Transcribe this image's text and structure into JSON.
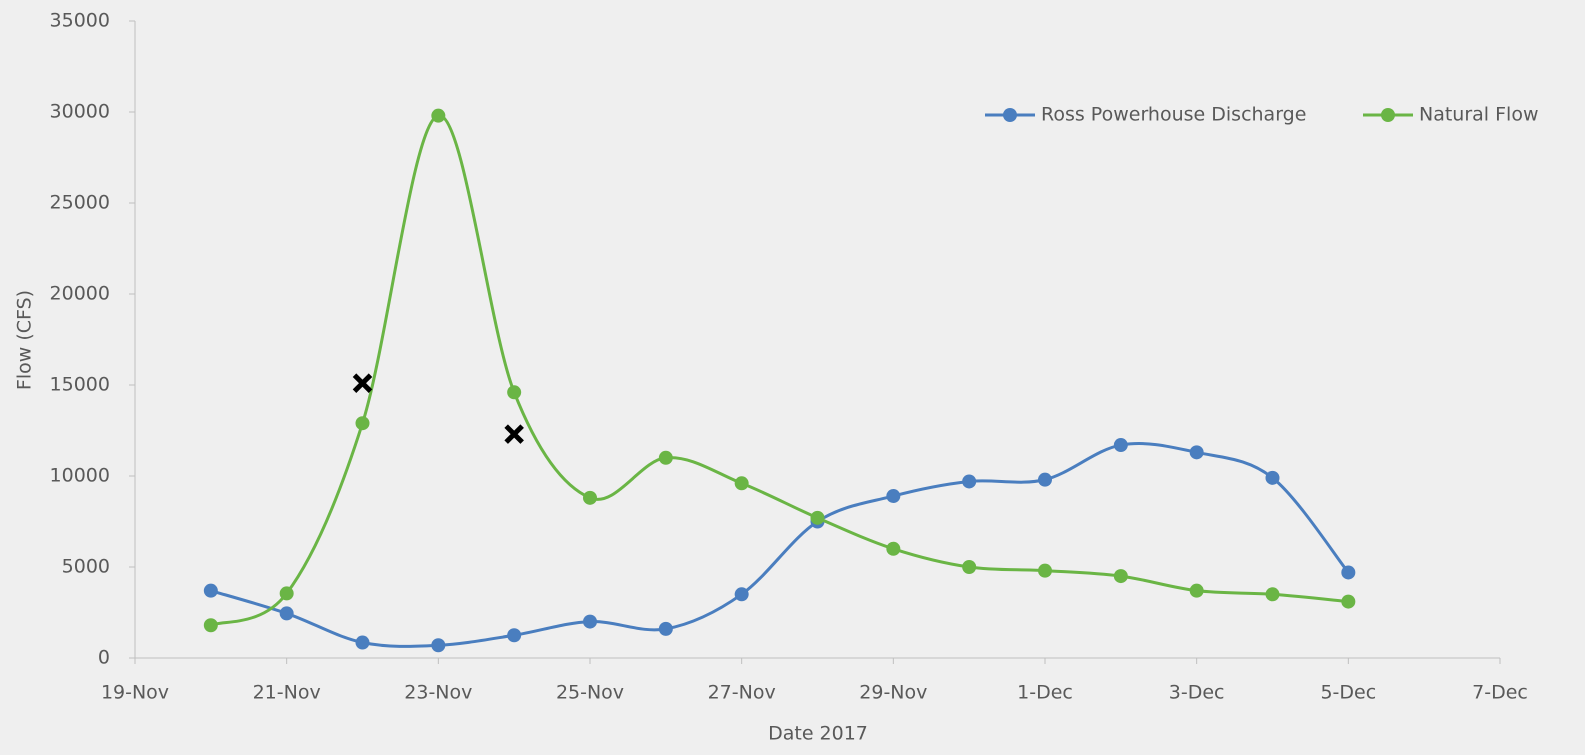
{
  "chart_data": {
    "type": "line",
    "x_label": "Date 2017",
    "y_label": "Flow (CFS)",
    "x": [
      "20-Nov",
      "21-Nov",
      "22-Nov",
      "23-Nov",
      "24-Nov",
      "25-Nov",
      "26-Nov",
      "27-Nov",
      "28-Nov",
      "29-Nov",
      "30-Nov",
      "1-Dec",
      "2-Dec",
      "3-Dec",
      "4-Dec",
      "5-Dec"
    ],
    "series": [
      {
        "name": "Ross Powerhouse Discharge",
        "color": "#4a7ebf",
        "values": [
          3700,
          2450,
          850,
          700,
          1250,
          2000,
          1600,
          3500,
          7500,
          8900,
          9700,
          9800,
          11700,
          11300,
          9900,
          4700
        ]
      },
      {
        "name": "Natural Flow",
        "color": "#6ab545",
        "values": [
          1800,
          3550,
          12900,
          29800,
          14600,
          8800,
          11000,
          9600,
          7700,
          6000,
          5000,
          4800,
          4500,
          3700,
          3500,
          3100
        ]
      }
    ],
    "markers": {
      "color": "#000000",
      "x": [
        "22-Nov",
        "24-Nov"
      ],
      "y": [
        15100,
        12300
      ]
    },
    "xlim": [
      "19-Nov",
      "7-Dec"
    ],
    "xticks": [
      "19-Nov",
      "21-Nov",
      "23-Nov",
      "25-Nov",
      "27-Nov",
      "29-Nov",
      "1-Dec",
      "3-Dec",
      "5-Dec",
      "7-Dec"
    ],
    "ylim": [
      0,
      35000
    ],
    "yticks": [
      0,
      5000,
      10000,
      15000,
      20000,
      25000,
      30000,
      35000
    ],
    "grid": false,
    "legend": "top-right",
    "smooth": true
  }
}
